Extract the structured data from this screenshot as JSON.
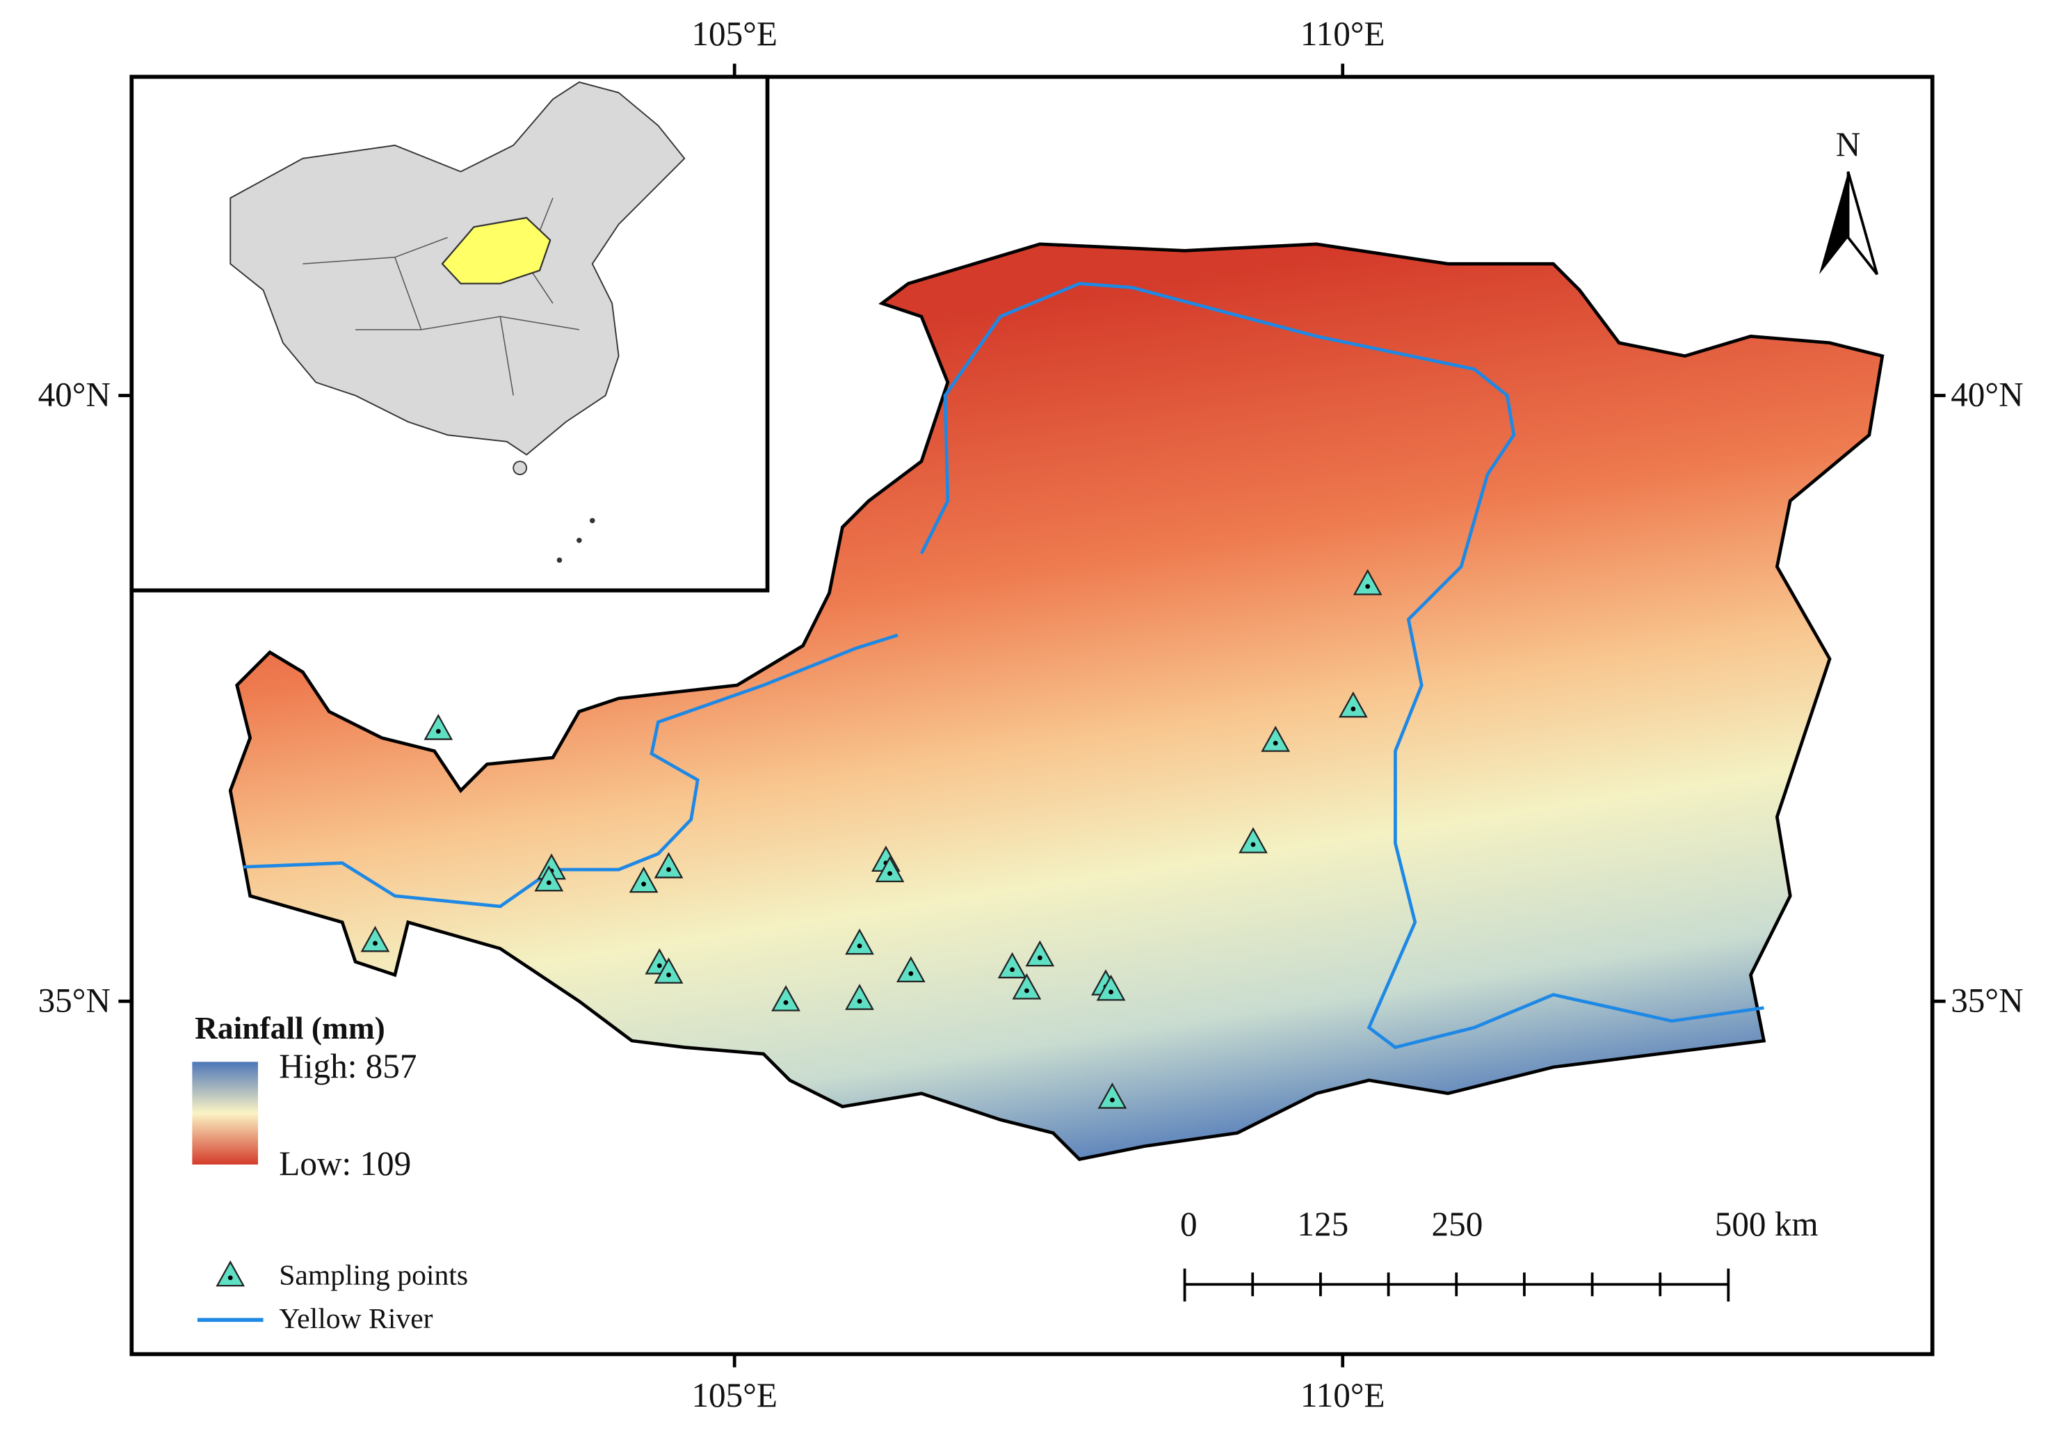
{
  "axes": {
    "top": [
      "105°E",
      "110°E"
    ],
    "bottom": [
      "105°E",
      "110°E"
    ],
    "left": [
      "40°N",
      "35°N"
    ],
    "right": [
      "40°N",
      "35°N"
    ]
  },
  "legend": {
    "title": "Rainfall (mm)",
    "high": "High: 857",
    "low": "Low: 109",
    "items": [
      "Sampling points",
      "Yellow River"
    ]
  },
  "north": "N",
  "scale_bar": {
    "labels": [
      "0",
      "125",
      "250",
      "500 km"
    ]
  }
}
